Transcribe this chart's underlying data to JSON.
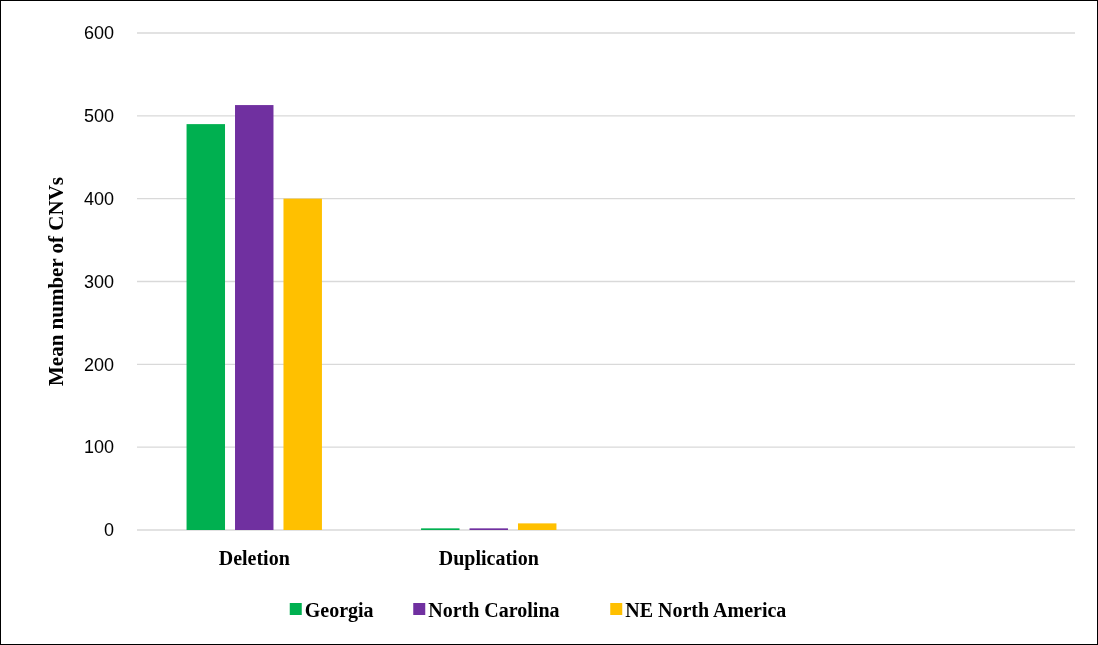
{
  "chart_data": {
    "type": "bar",
    "ylabel": "Mean number of CNVs",
    "categories": [
      "Deletion",
      "Duplication",
      null,
      null
    ],
    "series": [
      {
        "name": "Georgia",
        "color": "#00b050",
        "values": [
          490,
          2,
          null,
          null
        ]
      },
      {
        "name": "North Carolina",
        "color": "#7030a0",
        "values": [
          513,
          2,
          null,
          null
        ]
      },
      {
        "name": "NE North America",
        "color": "#ffc000",
        "values": [
          400,
          8,
          null,
          null
        ]
      }
    ],
    "ylim": [
      0,
      600
    ],
    "yticks": [
      0,
      100,
      200,
      300,
      400,
      500,
      600
    ],
    "grid": "y",
    "legend": "bottom"
  }
}
